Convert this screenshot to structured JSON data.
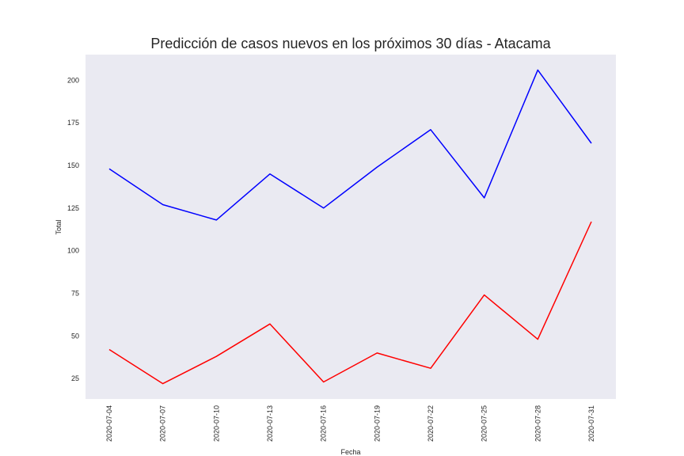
{
  "chart_data": {
    "type": "line",
    "title": "Predicción de casos nuevos en los próximos 30 días - Atacama",
    "xlabel": "Fecha",
    "ylabel": "Total",
    "x": [
      "2020-07-04",
      "2020-07-07",
      "2020-07-10",
      "2020-07-13",
      "2020-07-16",
      "2020-07-19",
      "2020-07-22",
      "2020-07-25",
      "2020-07-28",
      "2020-07-31"
    ],
    "yticks": [
      25,
      50,
      75,
      100,
      125,
      150,
      175,
      200
    ],
    "ylim": [
      13,
      215
    ],
    "grid": false,
    "legend": "none",
    "background": "#eaeaf2",
    "series": [
      {
        "color": "#0000ff",
        "values": [
          148,
          127,
          118,
          145,
          125,
          149,
          171,
          131,
          206,
          163
        ]
      },
      {
        "color": "#ff0000",
        "values": [
          42,
          22,
          38,
          57,
          23,
          40,
          31,
          74,
          48,
          117
        ]
      }
    ]
  }
}
